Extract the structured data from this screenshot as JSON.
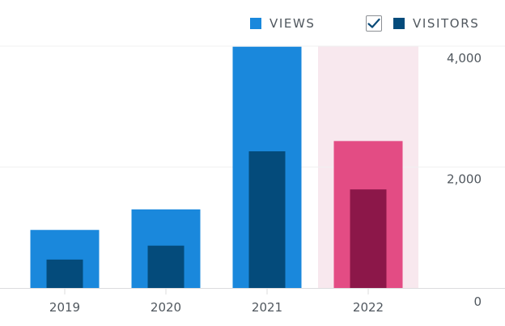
{
  "legend": {
    "views_label": "VIEWS",
    "visitors_label": "VISITORS",
    "visitors_checked": true,
    "check_icon": "checkmark-icon"
  },
  "colors": {
    "views": "#1a88dc",
    "visitors": "#044b7b",
    "views_highlight": "#e34c84",
    "visitors_highlight": "#8c1749",
    "highlight_band": "#f8e8ee",
    "grid": "#f0f0f1",
    "axis": "#dcdcde",
    "checkbox_check": "#0a4b78"
  },
  "chart_data": {
    "type": "bar",
    "categories": [
      "2019",
      "2020",
      "2021",
      "2022"
    ],
    "series": [
      {
        "name": "VIEWS",
        "values": [
          960,
          1300,
          3990,
          2430
        ]
      },
      {
        "name": "VISITORS",
        "values": [
          470,
          700,
          2260,
          1630
        ]
      }
    ],
    "y_ticks": [
      "0",
      "2,000",
      "4,000"
    ],
    "ylim": [
      0,
      4000
    ],
    "highlighted_category": "2022",
    "grid": true,
    "y_axis_side": "right",
    "legend_position": "top-right",
    "title": "",
    "xlabel": "",
    "ylabel": ""
  }
}
